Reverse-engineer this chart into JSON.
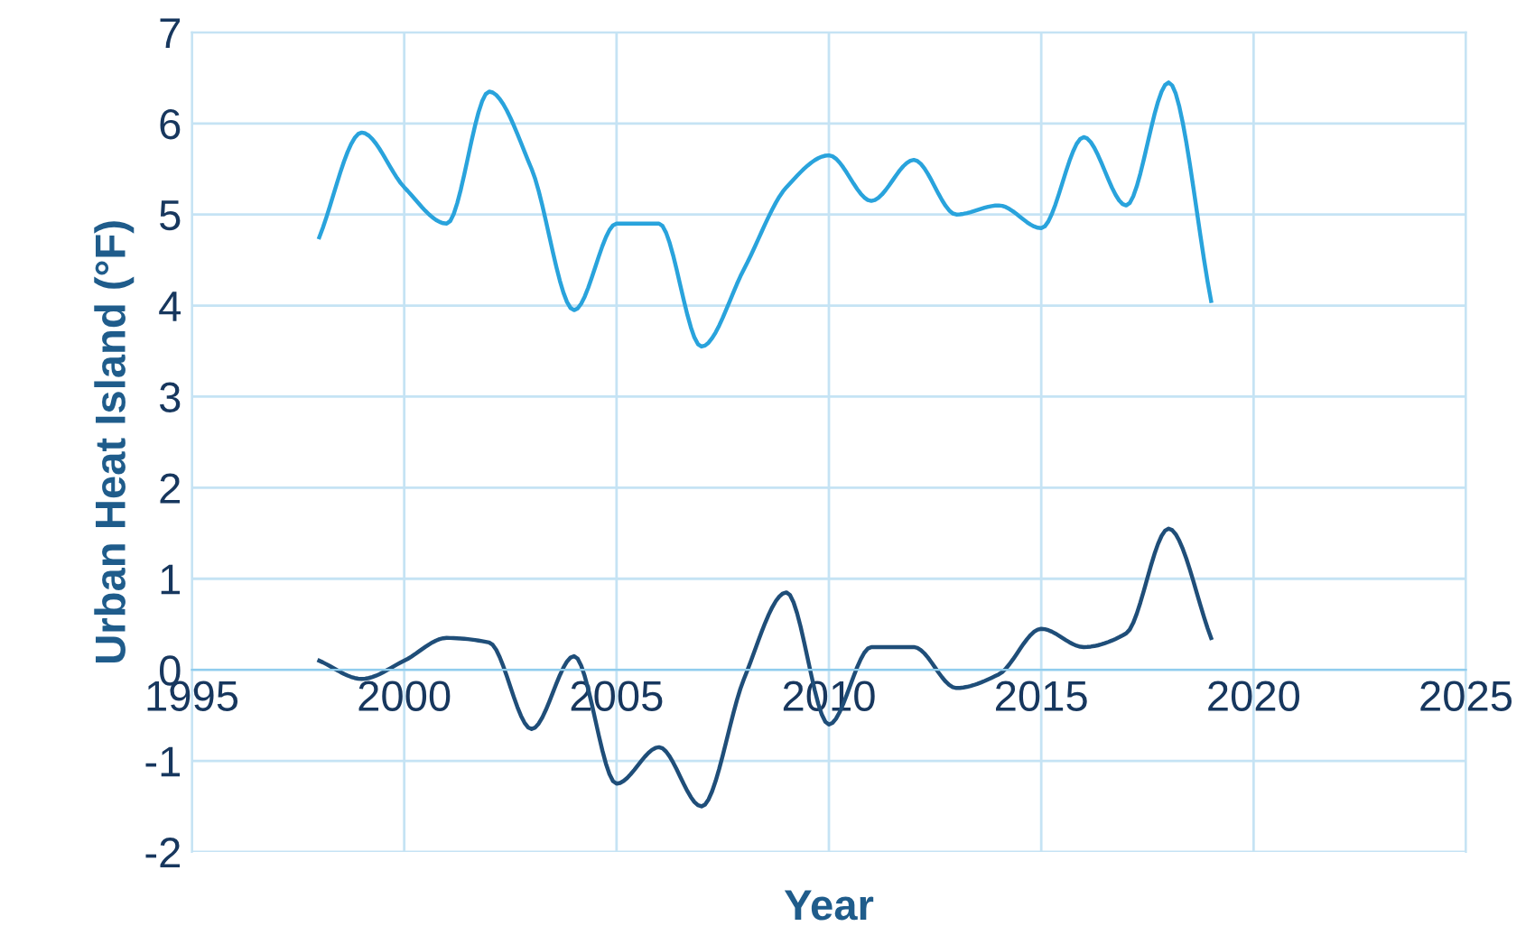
{
  "chart_data": {
    "type": "line",
    "xlabel": "Year",
    "ylabel": "Urban Heat Island (°F)",
    "x": [
      1998,
      1999,
      2000,
      2001,
      2002,
      2003,
      2004,
      2005,
      2006,
      2007,
      2008,
      2009,
      2010,
      2011,
      2012,
      2013,
      2014,
      2015,
      2016,
      2017,
      2018,
      2019
    ],
    "series": [
      {
        "color": "#29a3dc",
        "values": [
          4.75,
          5.9,
          5.3,
          4.9,
          6.35,
          5.5,
          3.95,
          4.9,
          4.9,
          3.55,
          4.4,
          5.3,
          5.65,
          5.15,
          5.6,
          5.0,
          5.1,
          4.85,
          5.85,
          5.1,
          6.45,
          4.05
        ]
      },
      {
        "color": "#1f4e79",
        "values": [
          0.1,
          -0.1,
          0.1,
          0.35,
          0.3,
          -0.65,
          0.15,
          -1.25,
          -0.85,
          -1.5,
          -0.1,
          0.85,
          -0.6,
          0.25,
          0.25,
          -0.2,
          -0.05,
          0.45,
          0.25,
          0.4,
          1.55,
          0.35
        ]
      }
    ],
    "xlim": [
      1995,
      2025
    ],
    "xticks": [
      1995,
      2000,
      2005,
      2010,
      2015,
      2020,
      2025
    ],
    "ylim": [
      -2,
      7
    ],
    "yticks": [
      -2,
      -1,
      0,
      1,
      2,
      3,
      4,
      5,
      6,
      7
    ],
    "grid": true,
    "marker": "none",
    "line_style": "solid",
    "legend": false
  }
}
